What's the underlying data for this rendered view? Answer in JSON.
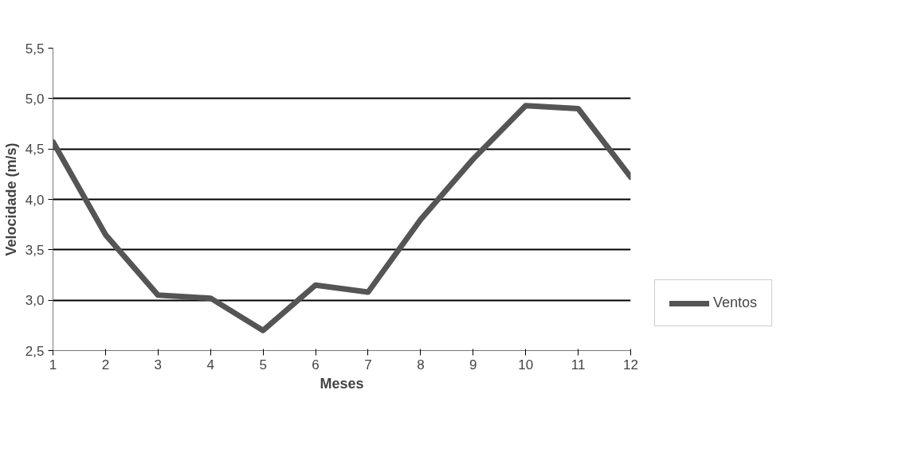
{
  "chart_data": {
    "type": "line",
    "xlabel": "Meses",
    "ylabel": "Velocidade (m/s)",
    "x": [
      1,
      2,
      3,
      4,
      5,
      6,
      7,
      8,
      9,
      10,
      11,
      12
    ],
    "series": [
      {
        "name": "Ventos",
        "color": "#555555",
        "values": [
          4.57,
          3.65,
          3.05,
          3.02,
          2.7,
          3.15,
          3.08,
          3.8,
          4.4,
          4.93,
          4.9,
          4.22
        ]
      }
    ],
    "xlim": [
      1,
      12
    ],
    "xticks": [
      1,
      2,
      3,
      4,
      5,
      6,
      7,
      8,
      9,
      10,
      11,
      12
    ],
    "ylim": [
      2.5,
      5.5
    ],
    "yticks": [
      {
        "value": 2.5,
        "label": "2,5"
      },
      {
        "value": 3.0,
        "label": "3,0"
      },
      {
        "value": 3.5,
        "label": "3,5"
      },
      {
        "value": 4.0,
        "label": "4,0"
      },
      {
        "value": 4.5,
        "label": "4,5"
      },
      {
        "value": 5.0,
        "label": "5,0"
      },
      {
        "value": 5.5,
        "label": "5,5"
      }
    ],
    "grid": "y",
    "legend": "right",
    "marker": "none",
    "line_style": "solid"
  }
}
